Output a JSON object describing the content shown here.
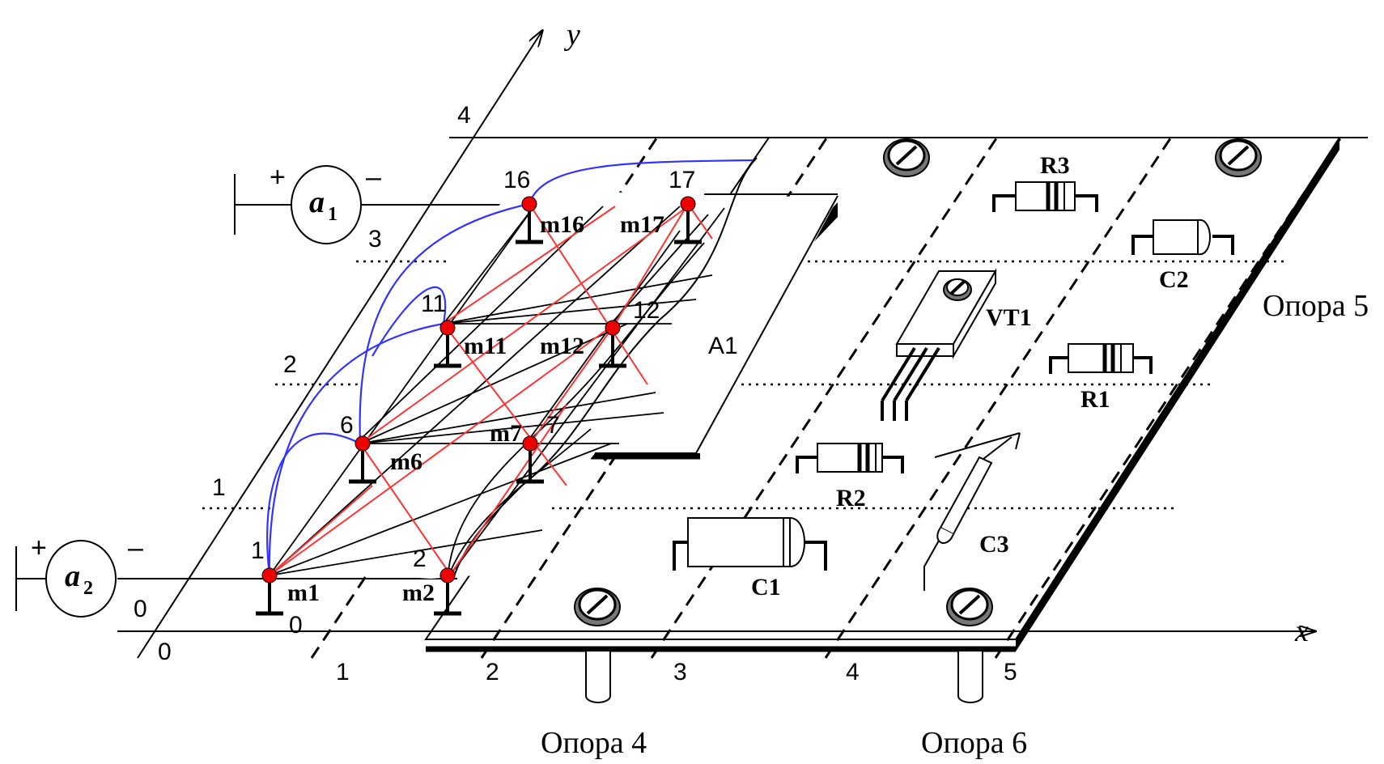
{
  "axes": {
    "x_label": "x",
    "y_label": "y"
  },
  "x_grid_labels": [
    "0",
    "1",
    "2",
    "3",
    "4",
    "5"
  ],
  "y_grid_labels": [
    "0",
    "1",
    "2",
    "3",
    "4"
  ],
  "origin_label": "0",
  "generators": [
    {
      "letter": "a",
      "sub": "1",
      "plus": "+",
      "minus": "–"
    },
    {
      "letter": "a",
      "sub": "2",
      "plus": "+",
      "minus": "–"
    }
  ],
  "nodes": [
    {
      "num": "1",
      "mark": "m1"
    },
    {
      "num": "2",
      "mark": "m2"
    },
    {
      "num": "6",
      "mark": "m6"
    },
    {
      "num": "7",
      "mark": "m7"
    },
    {
      "num": "11",
      "mark": "m11"
    },
    {
      "num": "12",
      "mark": "m12"
    },
    {
      "num": "16",
      "mark": "m16"
    },
    {
      "num": "17",
      "mark": "m17"
    }
  ],
  "board_label": "A1",
  "components": {
    "r1": "R1",
    "r2": "R2",
    "r3": "R3",
    "c1": "C1",
    "c2": "C2",
    "c3": "C3",
    "vt1": "VT1"
  },
  "supports": {
    "s4": "Опора 4",
    "s5": "Опора 5",
    "s6": "Опора 6"
  },
  "colors": {
    "wire_blue": "#3333ff",
    "wire_red": "#ff3333",
    "node_red": "#ee0000"
  }
}
